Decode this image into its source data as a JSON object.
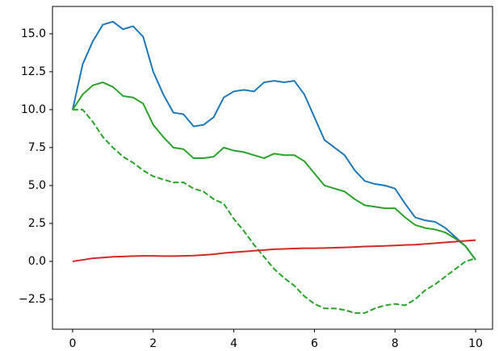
{
  "chart_data": {
    "type": "line",
    "x": [
      0,
      0.25,
      0.5,
      0.75,
      1,
      1.25,
      1.5,
      1.75,
      2,
      2.25,
      2.5,
      2.75,
      3,
      3.25,
      3.5,
      3.75,
      4,
      4.25,
      4.5,
      4.75,
      5,
      5.25,
      5.5,
      5.75,
      6,
      6.25,
      6.5,
      6.75,
      7,
      7.25,
      7.5,
      7.75,
      8,
      8.25,
      8.5,
      8.75,
      9,
      9.25,
      9.5,
      9.75,
      10
    ],
    "series": [
      {
        "color": "#1f77b4",
        "linestyle": "solid",
        "values": [
          10,
          13,
          14.5,
          15.6,
          15.8,
          15.3,
          15.5,
          14.8,
          12.5,
          11,
          9.8,
          9.7,
          8.9,
          9,
          9.5,
          10.8,
          11.2,
          11.3,
          11.2,
          11.8,
          11.9,
          11.8,
          11.9,
          11,
          9.5,
          8,
          7.5,
          7,
          6,
          5.3,
          5.1,
          5,
          4.8,
          3.8,
          2.9,
          2.7,
          2.6,
          2.2,
          1.6,
          1,
          0.1
        ]
      },
      {
        "color": "#2ca02c",
        "linestyle": "solid",
        "values": [
          10,
          11,
          11.6,
          11.8,
          11.5,
          10.9,
          10.8,
          10.4,
          9,
          8.2,
          7.5,
          7.4,
          6.8,
          6.8,
          6.9,
          7.5,
          7.3,
          7.2,
          7,
          6.8,
          7.1,
          7,
          7,
          6.6,
          5.8,
          5,
          4.8,
          4.6,
          4.1,
          3.7,
          3.6,
          3.5,
          3.5,
          2.9,
          2.4,
          2.2,
          2.1,
          1.9,
          1.5,
          1,
          0.1
        ]
      },
      {
        "color": "#2ca02c",
        "linestyle": "dashed",
        "values": [
          10,
          10,
          9.2,
          8.2,
          7.5,
          6.9,
          6.5,
          6,
          5.6,
          5.4,
          5.2,
          5.2,
          4.8,
          4.6,
          4.1,
          3.8,
          2.8,
          2,
          1.1,
          0.3,
          -0.5,
          -1.1,
          -1.6,
          -2.3,
          -2.8,
          -3.1,
          -3.1,
          -3.2,
          -3.4,
          -3.4,
          -3.1,
          -2.9,
          -2.8,
          -2.9,
          -2.5,
          -1.9,
          -1.5,
          -1,
          -0.5,
          0,
          0.2
        ]
      },
      {
        "color": "#d62728",
        "linestyle": "solid",
        "values": [
          0,
          0.1,
          0.2,
          0.25,
          0.3,
          0.32,
          0.35,
          0.36,
          0.36,
          0.35,
          0.35,
          0.36,
          0.38,
          0.42,
          0.47,
          0.55,
          0.6,
          0.65,
          0.7,
          0.75,
          0.8,
          0.82,
          0.85,
          0.87,
          0.87,
          0.88,
          0.9,
          0.92,
          0.95,
          0.98,
          1,
          1.02,
          1.05,
          1.08,
          1.1,
          1.15,
          1.2,
          1.25,
          1.3,
          1.35,
          1.4
        ]
      }
    ],
    "xlim": [
      -0.5,
      10.42
    ],
    "ylim": [
      -4.47,
      16.8
    ],
    "xticks": [
      0,
      2,
      4,
      6,
      8,
      10
    ],
    "yticks": [
      {
        "value": -2.5,
        "label": "−2.5"
      },
      {
        "value": 0,
        "label": "0.0"
      },
      {
        "value": 2.5,
        "label": "2.5"
      },
      {
        "value": 5,
        "label": "5.0"
      },
      {
        "value": 7.5,
        "label": "7.5"
      },
      {
        "value": 10,
        "label": "10.0"
      },
      {
        "value": 12.5,
        "label": "12.5"
      },
      {
        "value": 15,
        "label": "15.0"
      }
    ],
    "grid": false
  }
}
